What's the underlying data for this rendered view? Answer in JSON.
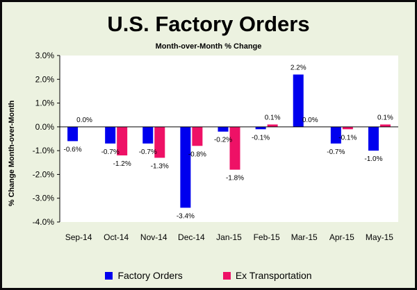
{
  "colors": {
    "factory_orders": "#0000ee",
    "ex_transportation": "#ee1166",
    "plot_bg": "#ffffff",
    "chart_bg": "#ecf2e0"
  },
  "chart_data": {
    "type": "bar",
    "title": "U.S. Factory Orders",
    "subtitle": "Month-over-Month % Change",
    "xlabel": "",
    "ylabel": "% Change Month-over-Month",
    "categories": [
      "Sep-14",
      "Oct-14",
      "Nov-14",
      "Dec-14",
      "Jan-15",
      "Feb-15",
      "Mar-15",
      "Apr-15",
      "May-15"
    ],
    "series": [
      {
        "name": "Factory Orders",
        "values": [
          -0.6,
          -0.7,
          -0.7,
          -3.4,
          -0.2,
          -0.1,
          2.2,
          -0.7,
          -1.0
        ],
        "labels": [
          "-0.6%",
          "-0.7%",
          "-0.7%",
          "-3.4%",
          "-0.2%",
          "-0.1%",
          "2.2%",
          "-0.7%",
          "-1.0%"
        ]
      },
      {
        "name": "Ex Transportation",
        "values": [
          0.0,
          -1.2,
          -1.3,
          -0.8,
          -1.8,
          0.1,
          0.0,
          -0.1,
          0.1
        ],
        "labels": [
          "0.0%",
          "-1.2%",
          "-1.3%",
          "-0.8%",
          "-1.8%",
          "0.1%",
          "0.0%",
          "-0.1%",
          "0.1%"
        ]
      }
    ],
    "ylim": [
      -4.0,
      3.0
    ],
    "yticks": [
      3.0,
      2.0,
      1.0,
      0.0,
      -1.0,
      -2.0,
      -3.0,
      -4.0
    ],
    "ytick_labels": [
      "3.0%",
      "2.0%",
      "1.0%",
      "0.0%",
      "-1.0%",
      "-2.0%",
      "-3.0%",
      "-4.0%"
    ],
    "grid": false,
    "legend": "bottom"
  }
}
